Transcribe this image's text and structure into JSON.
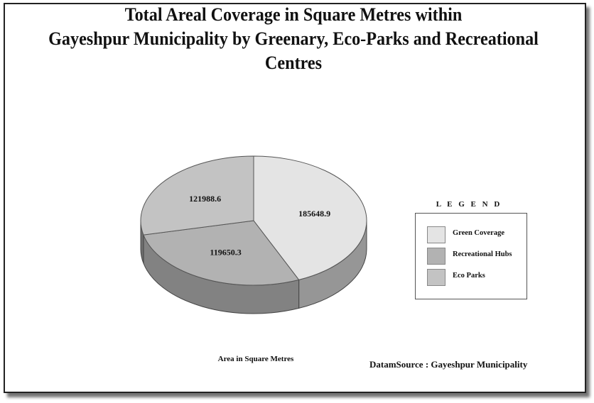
{
  "chart_data": {
    "type": "pie",
    "title": "Total Areal  Coverage in Square Metres within Gayeshpur Municipality by Greenary, Eco-Parks and Recreational Centres",
    "title_lines": [
      "Total Areal  Coverage in Square Metres within",
      "Gayeshpur Municipality by Greenary, Eco-Parks and Recreational Centres"
    ],
    "categories": [
      "Green Coverage",
      "Recreational Hubs",
      "Eco Parks"
    ],
    "values": [
      185648.9,
      119650.3,
      121988.6
    ],
    "value_labels": [
      "185648.9",
      "119650.3",
      "121988.6"
    ],
    "colors": [
      "#e4e4e4",
      "#b2b2b2",
      "#c3c3c3"
    ],
    "style": "3d",
    "xlabel": "Area in Square Metres",
    "legend_title": "L E G E N D",
    "legend_position": "right",
    "source": "DatamSource : Gayeshpur Municipality"
  }
}
